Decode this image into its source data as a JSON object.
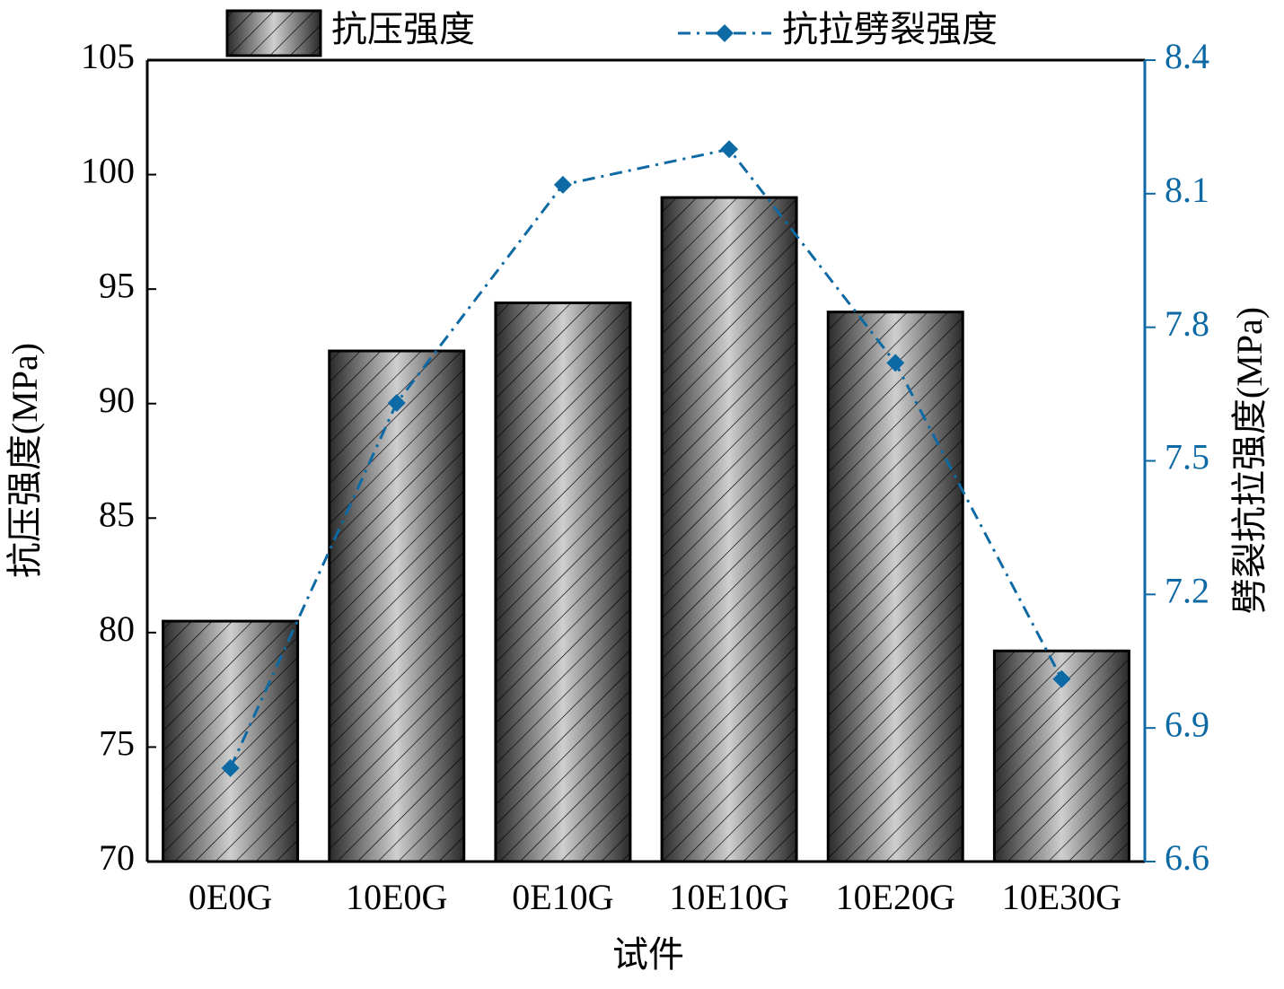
{
  "chart_data": {
    "type": "bar_line",
    "categories": [
      "0E0G",
      "10E0G",
      "0E10G",
      "10E10G",
      "10E20G",
      "10E30G"
    ],
    "series": [
      {
        "name": "抗压强度",
        "type": "bar",
        "color": "#444444",
        "values": [
          80.5,
          92.3,
          94.4,
          99.0,
          94.0,
          79.2
        ]
      },
      {
        "name": "抗拉劈裂强度",
        "type": "line",
        "axis": "y2",
        "color": "#0e6aa5",
        "values": [
          6.81,
          7.63,
          8.12,
          8.2,
          7.72,
          7.01
        ]
      }
    ],
    "x_label": "试件",
    "y_label": "抗压强度(MPa)",
    "y2_label": "劈裂抗拉强度(MPa)",
    "ylim": [
      70,
      105
    ],
    "yticks": [
      70,
      75,
      80,
      85,
      90,
      95,
      100,
      105
    ],
    "y2lim": [
      6.6,
      8.4
    ],
    "y2ticks": [
      6.6,
      6.9,
      7.2,
      7.5,
      7.8,
      8.1,
      8.4
    ],
    "y2_color": "#0e6aa5",
    "legend": "top"
  }
}
